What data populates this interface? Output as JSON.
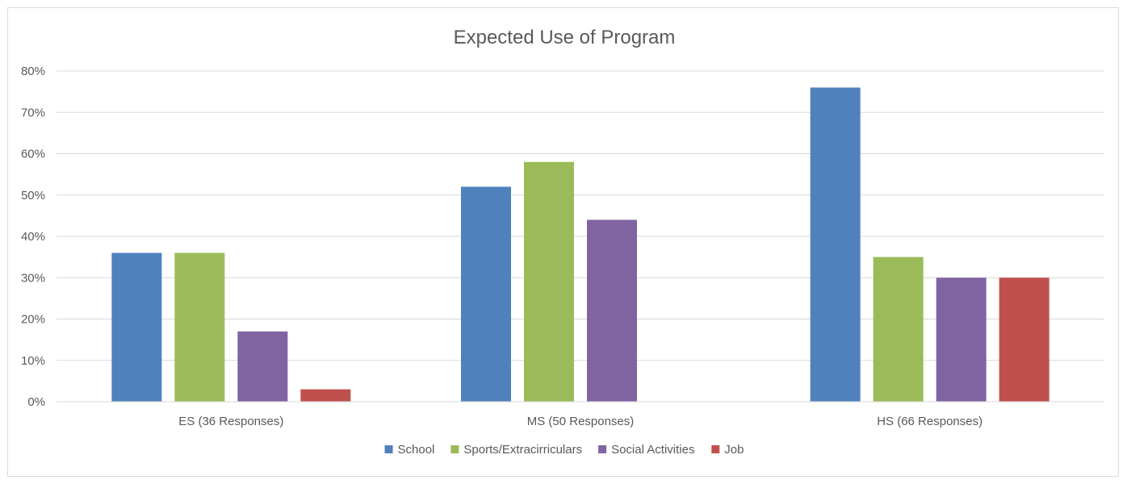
{
  "chart_data": {
    "type": "bar",
    "title": "Expected Use of Program",
    "categories": [
      "ES (36 Responses)",
      "MS (50 Responses)",
      "HS (66 Responses)"
    ],
    "series": [
      {
        "name": "School",
        "color": "#4F81BD",
        "values": [
          36,
          52,
          76
        ]
      },
      {
        "name": "Sports/Extracirriculars",
        "color": "#9BBB59",
        "values": [
          36,
          58,
          35
        ]
      },
      {
        "name": "Social Activities",
        "color": "#8064A2",
        "values": [
          17,
          44,
          30
        ]
      },
      {
        "name": "Job",
        "color": "#C0504D",
        "values": [
          3,
          0,
          30
        ]
      }
    ],
    "ylim": [
      0,
      80
    ],
    "yticks": [
      0,
      10,
      20,
      30,
      40,
      50,
      60,
      70,
      80
    ],
    "ytick_format": "percent",
    "grid": true,
    "legend": "bottom",
    "xlabel": "",
    "ylabel": ""
  }
}
